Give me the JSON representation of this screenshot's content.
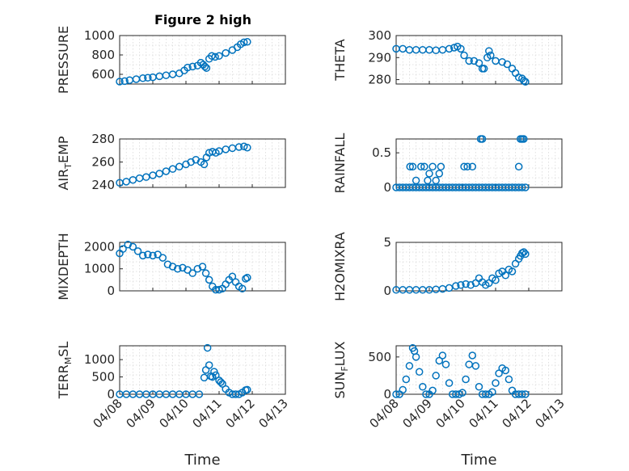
{
  "figure": {
    "title": "Figure 2 high",
    "marker_color": "#0072BD"
  },
  "chart_data": [
    {
      "type": "scatter",
      "name": "PRESSURE",
      "ylabel": "PRESSURE",
      "xlim": [
        "04/08",
        "04/13"
      ],
      "ylim": [
        500,
        1000
      ],
      "yticks": [
        600,
        800,
        1000
      ],
      "xticks": [
        "04/08",
        "04/09",
        "04/10",
        "04/11",
        "04/12",
        "04/13"
      ],
      "xstart": "2008-04-08",
      "show_xlabel": false,
      "points": [
        [
          0.0,
          525
        ],
        [
          0.15,
          530
        ],
        [
          0.3,
          540
        ],
        [
          0.5,
          550
        ],
        [
          0.7,
          560
        ],
        [
          0.85,
          565
        ],
        [
          1.0,
          570
        ],
        [
          1.2,
          580
        ],
        [
          1.4,
          590
        ],
        [
          1.6,
          600
        ],
        [
          1.8,
          610
        ],
        [
          1.95,
          640
        ],
        [
          2.05,
          670
        ],
        [
          2.2,
          680
        ],
        [
          2.35,
          690
        ],
        [
          2.45,
          720
        ],
        [
          2.52,
          700
        ],
        [
          2.57,
          680
        ],
        [
          2.62,
          665
        ],
        [
          2.7,
          760
        ],
        [
          2.78,
          790
        ],
        [
          2.88,
          780
        ],
        [
          3.0,
          790
        ],
        [
          3.2,
          820
        ],
        [
          3.4,
          850
        ],
        [
          3.55,
          880
        ],
        [
          3.65,
          910
        ],
        [
          3.75,
          930
        ],
        [
          3.85,
          935
        ]
      ]
    },
    {
      "type": "scatter",
      "name": "THETA",
      "ylabel": "THETA",
      "xlim": [
        "04/08",
        "04/13"
      ],
      "ylim": [
        278,
        300
      ],
      "yticks": [
        280,
        290,
        300
      ],
      "xticks": [
        "04/08",
        "04/09",
        "04/10",
        "04/11",
        "04/12",
        "04/13"
      ],
      "xstart": "2008-04-08",
      "show_xlabel": false,
      "points": [
        [
          0.0,
          294
        ],
        [
          0.2,
          294
        ],
        [
          0.4,
          293.5
        ],
        [
          0.6,
          293.5
        ],
        [
          0.8,
          293.5
        ],
        [
          1.0,
          293.5
        ],
        [
          1.2,
          293.3
        ],
        [
          1.4,
          293.5
        ],
        [
          1.6,
          294
        ],
        [
          1.75,
          294.5
        ],
        [
          1.85,
          295
        ],
        [
          1.95,
          294
        ],
        [
          2.05,
          291
        ],
        [
          2.2,
          288.5
        ],
        [
          2.35,
          288.5
        ],
        [
          2.5,
          287.5
        ],
        [
          2.6,
          285
        ],
        [
          2.65,
          285
        ],
        [
          2.75,
          290
        ],
        [
          2.8,
          293
        ],
        [
          2.85,
          291
        ],
        [
          3.0,
          288.5
        ],
        [
          3.2,
          288
        ],
        [
          3.35,
          287
        ],
        [
          3.5,
          285
        ],
        [
          3.6,
          283
        ],
        [
          3.7,
          281
        ],
        [
          3.8,
          280.5
        ],
        [
          3.85,
          279.5
        ],
        [
          3.9,
          279
        ]
      ]
    },
    {
      "type": "scatter",
      "name": "AIR_TEMP",
      "ylabel": "AIR_TEMP",
      "xlim": [
        "04/08",
        "04/13"
      ],
      "ylim": [
        238,
        280
      ],
      "yticks": [
        240,
        260,
        280
      ],
      "xticks": [
        "04/08",
        "04/09",
        "04/10",
        "04/11",
        "04/12",
        "04/13"
      ],
      "xstart": "2008-04-08",
      "show_xlabel": false,
      "points": [
        [
          0.0,
          242
        ],
        [
          0.2,
          243
        ],
        [
          0.4,
          244.5
        ],
        [
          0.6,
          246
        ],
        [
          0.8,
          247
        ],
        [
          1.0,
          248.5
        ],
        [
          1.2,
          250
        ],
        [
          1.4,
          252
        ],
        [
          1.6,
          254
        ],
        [
          1.8,
          256
        ],
        [
          2.0,
          258
        ],
        [
          2.15,
          260
        ],
        [
          2.3,
          262
        ],
        [
          2.45,
          260
        ],
        [
          2.55,
          258
        ],
        [
          2.62,
          264
        ],
        [
          2.7,
          268
        ],
        [
          2.8,
          269
        ],
        [
          2.9,
          268
        ],
        [
          3.0,
          269.5
        ],
        [
          3.2,
          271
        ],
        [
          3.4,
          272
        ],
        [
          3.6,
          273
        ],
        [
          3.75,
          273.5
        ],
        [
          3.85,
          272.5
        ]
      ]
    },
    {
      "type": "scatter",
      "name": "RAINFALL",
      "ylabel": "RAINFALL",
      "xlim": [
        "04/08",
        "04/13"
      ],
      "ylim": [
        0,
        0.7
      ],
      "yticks": [
        0,
        0.5
      ],
      "xticks": [
        "04/08",
        "04/09",
        "04/10",
        "04/11",
        "04/12",
        "04/13"
      ],
      "xstart": "2008-04-08",
      "show_xlabel": false,
      "points": [
        [
          0.0,
          0
        ],
        [
          0.1,
          0
        ],
        [
          0.2,
          0
        ],
        [
          0.3,
          0
        ],
        [
          0.4,
          0
        ],
        [
          0.5,
          0
        ],
        [
          0.6,
          0
        ],
        [
          0.7,
          0
        ],
        [
          0.8,
          0
        ],
        [
          0.9,
          0
        ],
        [
          1.0,
          0
        ],
        [
          1.1,
          0
        ],
        [
          1.2,
          0
        ],
        [
          1.3,
          0
        ],
        [
          1.4,
          0
        ],
        [
          1.5,
          0
        ],
        [
          1.6,
          0
        ],
        [
          1.7,
          0
        ],
        [
          1.8,
          0
        ],
        [
          1.9,
          0
        ],
        [
          2.0,
          0
        ],
        [
          2.1,
          0
        ],
        [
          2.2,
          0
        ],
        [
          2.3,
          0
        ],
        [
          2.4,
          0
        ],
        [
          2.5,
          0
        ],
        [
          2.6,
          0
        ],
        [
          2.7,
          0
        ],
        [
          2.8,
          0
        ],
        [
          2.9,
          0
        ],
        [
          3.0,
          0
        ],
        [
          3.1,
          0
        ],
        [
          3.2,
          0
        ],
        [
          3.3,
          0
        ],
        [
          3.4,
          0
        ],
        [
          3.5,
          0
        ],
        [
          3.6,
          0
        ],
        [
          3.7,
          0
        ],
        [
          3.8,
          0
        ],
        [
          3.9,
          0
        ],
        [
          0.42,
          0.3
        ],
        [
          0.5,
          0.3
        ],
        [
          0.6,
          0.1
        ],
        [
          0.75,
          0.3
        ],
        [
          0.85,
          0.3
        ],
        [
          0.95,
          0.1
        ],
        [
          1.0,
          0.2
        ],
        [
          1.1,
          0.3
        ],
        [
          1.2,
          0.1
        ],
        [
          1.3,
          0.2
        ],
        [
          1.35,
          0.3
        ],
        [
          2.05,
          0.3
        ],
        [
          2.15,
          0.3
        ],
        [
          2.3,
          0.3
        ],
        [
          2.55,
          0.7
        ],
        [
          2.6,
          0.7
        ],
        [
          3.7,
          0.3
        ],
        [
          3.75,
          0.7
        ],
        [
          3.8,
          0.7
        ],
        [
          3.85,
          0.7
        ]
      ]
    },
    {
      "type": "scatter",
      "name": "MIXDEPTH",
      "ylabel": "MIXDEPTH",
      "xlim": [
        "04/08",
        "04/13"
      ],
      "ylim": [
        0,
        2200
      ],
      "yticks": [
        0,
        1000,
        2000
      ],
      "xticks": [
        "04/08",
        "04/09",
        "04/10",
        "04/11",
        "04/12",
        "04/13"
      ],
      "xstart": "2008-04-08",
      "show_xlabel": false,
      "points": [
        [
          0.0,
          1700
        ],
        [
          0.1,
          1900
        ],
        [
          0.25,
          2100
        ],
        [
          0.4,
          2000
        ],
        [
          0.55,
          1800
        ],
        [
          0.7,
          1600
        ],
        [
          0.85,
          1650
        ],
        [
          1.0,
          1600
        ],
        [
          1.15,
          1650
        ],
        [
          1.3,
          1500
        ],
        [
          1.45,
          1200
        ],
        [
          1.6,
          1100
        ],
        [
          1.75,
          1000
        ],
        [
          1.9,
          1050
        ],
        [
          2.05,
          950
        ],
        [
          2.2,
          800
        ],
        [
          2.35,
          1000
        ],
        [
          2.5,
          1100
        ],
        [
          2.6,
          800
        ],
        [
          2.7,
          500
        ],
        [
          2.8,
          200
        ],
        [
          2.9,
          50
        ],
        [
          3.0,
          50
        ],
        [
          3.1,
          100
        ],
        [
          3.2,
          300
        ],
        [
          3.3,
          500
        ],
        [
          3.4,
          650
        ],
        [
          3.5,
          400
        ],
        [
          3.6,
          200
        ],
        [
          3.7,
          100
        ],
        [
          3.8,
          550
        ],
        [
          3.85,
          600
        ]
      ]
    },
    {
      "type": "scatter",
      "name": "H2OMIXRA",
      "ylabel": "H2OMIXRA",
      "xlim": [
        "04/08",
        "04/13"
      ],
      "ylim": [
        0,
        5
      ],
      "yticks": [
        0,
        5
      ],
      "xticks": [
        "04/08",
        "04/09",
        "04/10",
        "04/11",
        "04/12",
        "04/13"
      ],
      "xstart": "2008-04-08",
      "show_xlabel": false,
      "points": [
        [
          0.0,
          0.1
        ],
        [
          0.2,
          0.1
        ],
        [
          0.4,
          0.1
        ],
        [
          0.6,
          0.1
        ],
        [
          0.8,
          0.1
        ],
        [
          1.0,
          0.1
        ],
        [
          1.2,
          0.15
        ],
        [
          1.4,
          0.2
        ],
        [
          1.6,
          0.3
        ],
        [
          1.8,
          0.5
        ],
        [
          1.95,
          0.6
        ],
        [
          2.1,
          0.7
        ],
        [
          2.25,
          0.6
        ],
        [
          2.4,
          0.8
        ],
        [
          2.5,
          1.3
        ],
        [
          2.6,
          0.9
        ],
        [
          2.7,
          0.6
        ],
        [
          2.8,
          0.8
        ],
        [
          2.9,
          1.3
        ],
        [
          3.0,
          1.1
        ],
        [
          3.1,
          1.8
        ],
        [
          3.2,
          2.0
        ],
        [
          3.3,
          1.6
        ],
        [
          3.4,
          2.2
        ],
        [
          3.5,
          2.0
        ],
        [
          3.6,
          2.8
        ],
        [
          3.7,
          3.3
        ],
        [
          3.75,
          3.6
        ],
        [
          3.8,
          3.9
        ],
        [
          3.85,
          4.0
        ],
        [
          3.9,
          3.8
        ]
      ]
    },
    {
      "type": "scatter",
      "name": "TERR_MSL",
      "ylabel": "TERR_MSL",
      "xlim": [
        "04/08",
        "04/13"
      ],
      "ylim": [
        0,
        1400
      ],
      "yticks": [
        0,
        500,
        1000
      ],
      "xticks": [
        "04/08",
        "04/09",
        "04/10",
        "04/11",
        "04/12",
        "04/13"
      ],
      "xstart": "2008-04-08",
      "show_xlabel": true,
      "points": [
        [
          0.0,
          0
        ],
        [
          0.2,
          0
        ],
        [
          0.4,
          0
        ],
        [
          0.6,
          0
        ],
        [
          0.8,
          0
        ],
        [
          1.0,
          0
        ],
        [
          1.2,
          0
        ],
        [
          1.4,
          0
        ],
        [
          1.6,
          0
        ],
        [
          1.8,
          0
        ],
        [
          2.0,
          0
        ],
        [
          2.2,
          0
        ],
        [
          2.4,
          0
        ],
        [
          2.55,
          480
        ],
        [
          2.6,
          700
        ],
        [
          2.65,
          1340
        ],
        [
          2.7,
          840
        ],
        [
          2.75,
          520
        ],
        [
          2.8,
          500
        ],
        [
          2.85,
          650
        ],
        [
          2.9,
          550
        ],
        [
          3.0,
          400
        ],
        [
          3.05,
          350
        ],
        [
          3.1,
          300
        ],
        [
          3.2,
          150
        ],
        [
          3.3,
          50
        ],
        [
          3.4,
          0
        ],
        [
          3.5,
          0
        ],
        [
          3.6,
          0
        ],
        [
          3.7,
          50
        ],
        [
          3.8,
          120
        ],
        [
          3.85,
          130
        ]
      ]
    },
    {
      "type": "scatter",
      "name": "SUN_FLUX",
      "ylabel": "SUN_FLUX",
      "xlim": [
        "04/08",
        "04/13"
      ],
      "ylim": [
        0,
        650
      ],
      "yticks": [
        0,
        500
      ],
      "xticks": [
        "04/08",
        "04/09",
        "04/10",
        "04/11",
        "04/12",
        "04/13"
      ],
      "xstart": "2008-04-08",
      "show_xlabel": true,
      "points": [
        [
          0.0,
          0
        ],
        [
          0.1,
          0
        ],
        [
          0.2,
          60
        ],
        [
          0.3,
          200
        ],
        [
          0.4,
          380
        ],
        [
          0.5,
          620
        ],
        [
          0.55,
          580
        ],
        [
          0.6,
          500
        ],
        [
          0.7,
          300
        ],
        [
          0.8,
          100
        ],
        [
          0.9,
          0
        ],
        [
          1.0,
          0
        ],
        [
          1.1,
          50
        ],
        [
          1.2,
          250
        ],
        [
          1.3,
          450
        ],
        [
          1.4,
          520
        ],
        [
          1.5,
          400
        ],
        [
          1.6,
          150
        ],
        [
          1.7,
          0
        ],
        [
          1.8,
          0
        ],
        [
          1.9,
          0
        ],
        [
          2.0,
          20
        ],
        [
          2.1,
          200
        ],
        [
          2.2,
          400
        ],
        [
          2.3,
          520
        ],
        [
          2.4,
          380
        ],
        [
          2.5,
          100
        ],
        [
          2.6,
          0
        ],
        [
          2.7,
          0
        ],
        [
          2.8,
          0
        ],
        [
          2.9,
          30
        ],
        [
          3.0,
          150
        ],
        [
          3.1,
          280
        ],
        [
          3.2,
          350
        ],
        [
          3.3,
          320
        ],
        [
          3.4,
          200
        ],
        [
          3.5,
          50
        ],
        [
          3.6,
          0
        ],
        [
          3.7,
          0
        ],
        [
          3.8,
          0
        ],
        [
          3.9,
          0
        ]
      ]
    }
  ],
  "labels": {
    "xlabel": "Time",
    "axes": [
      {
        "main": "PRESSURE",
        "sub": "",
        "tail": ""
      },
      {
        "main": "THETA",
        "sub": "",
        "tail": ""
      },
      {
        "main": "AIR",
        "sub": "T",
        "tail": "EMP"
      },
      {
        "main": "RAINFALL",
        "sub": "",
        "tail": ""
      },
      {
        "main": "MIXDEPTH",
        "sub": "",
        "tail": ""
      },
      {
        "main": "H2OMIXRA",
        "sub": "",
        "tail": ""
      },
      {
        "main": "TERR",
        "sub": "M",
        "tail": "SL"
      },
      {
        "main": "SUN",
        "sub": "F",
        "tail": "LUX"
      }
    ]
  }
}
